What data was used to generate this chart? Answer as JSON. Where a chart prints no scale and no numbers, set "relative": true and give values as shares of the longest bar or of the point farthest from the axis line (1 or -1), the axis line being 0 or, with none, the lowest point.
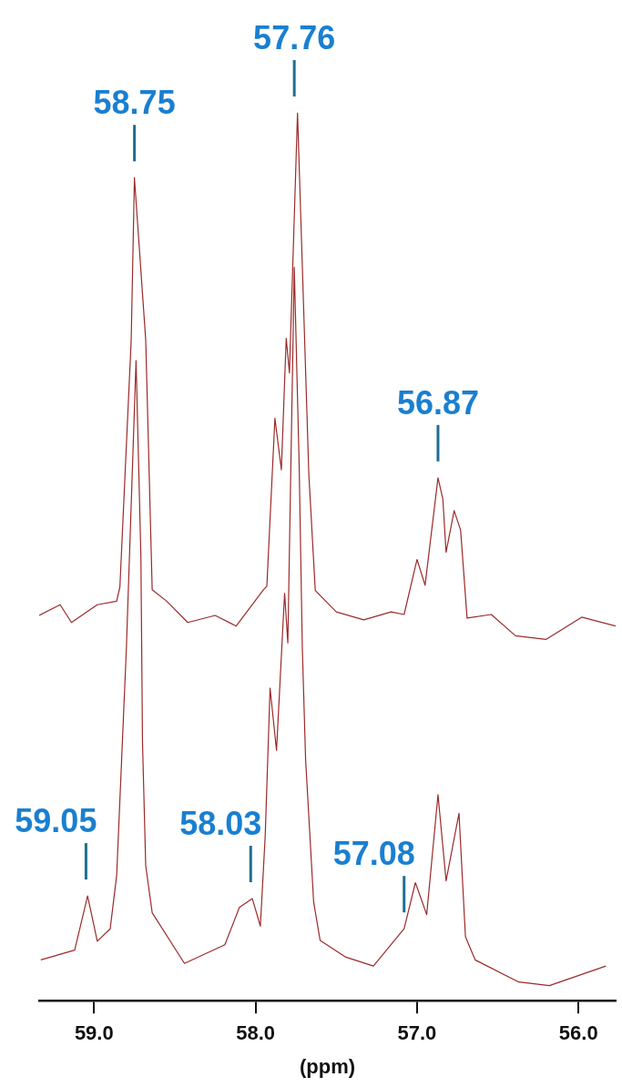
{
  "chart_data": {
    "type": "line",
    "relative": true,
    "xlabel": "(ppm)",
    "xlim": [
      59.34,
      55.77
    ],
    "xticks": [
      {
        "value": 59,
        "label": "59.0"
      },
      {
        "value": 58,
        "label": "58.0"
      },
      {
        "value": 57,
        "label": "57.0"
      },
      {
        "value": 56,
        "label": "56.0"
      }
    ],
    "series": [
      {
        "color": "#9b2a2a",
        "x": [
          59.34,
          59.21,
          59.14,
          58.98,
          58.86,
          58.84,
          58.77,
          58.75,
          58.68,
          58.64,
          58.55,
          58.42,
          58.25,
          58.12,
          57.95,
          57.93,
          57.88,
          57.84,
          57.81,
          57.79,
          57.74,
          57.69,
          57.67,
          57.63,
          57.5,
          57.33,
          57.16,
          57.08,
          57.0,
          56.95,
          56.87,
          56.84,
          56.82,
          56.77,
          56.73,
          56.69,
          56.54,
          56.39,
          56.2,
          55.98,
          55.77
        ],
        "values": [
          0.434,
          0.446,
          0.426,
          0.446,
          0.45,
          0.466,
          0.744,
          0.927,
          0.744,
          0.463,
          0.45,
          0.426,
          0.434,
          0.422,
          0.463,
          0.467,
          0.656,
          0.598,
          0.746,
          0.707,
          1.0,
          0.71,
          0.593,
          0.462,
          0.438,
          0.429,
          0.438,
          0.435,
          0.497,
          0.468,
          0.589,
          0.565,
          0.505,
          0.552,
          0.53,
          0.431,
          0.435,
          0.411,
          0.407,
          0.432,
          0.422
        ]
      },
      {
        "color": "#9b2a2a",
        "x": [
          59.33,
          59.12,
          59.04,
          58.98,
          58.9,
          58.86,
          58.8,
          58.74,
          58.71,
          58.7,
          58.68,
          58.64,
          58.44,
          58.19,
          58.1,
          58.02,
          57.97,
          57.94,
          57.91,
          57.87,
          57.82,
          57.8,
          57.76,
          57.73,
          57.71,
          57.69,
          57.64,
          57.6,
          57.44,
          57.27,
          57.08,
          57.01,
          56.94,
          56.87,
          56.82,
          56.74,
          56.7,
          56.64,
          56.37,
          56.18,
          55.83
        ],
        "values": [
          0.046,
          0.057,
          0.118,
          0.067,
          0.081,
          0.141,
          0.396,
          0.721,
          0.501,
          0.291,
          0.152,
          0.099,
          0.042,
          0.063,
          0.105,
          0.115,
          0.084,
          0.186,
          0.352,
          0.282,
          0.459,
          0.403,
          0.826,
          0.605,
          0.396,
          0.272,
          0.111,
          0.068,
          0.049,
          0.039,
          0.081,
          0.133,
          0.097,
          0.232,
          0.135,
          0.211,
          0.072,
          0.046,
          0.021,
          0.017,
          0.039
        ]
      }
    ],
    "annotations": [
      {
        "text": "58.75",
        "x": 58.75,
        "y": 0.927
      },
      {
        "text": "57.76",
        "x": 57.76,
        "y": 1.0
      },
      {
        "text": "56.87",
        "x": 56.87,
        "y": 0.589
      },
      {
        "text": "59.05",
        "x": 59.05,
        "y": 0.118
      },
      {
        "text": "58.03",
        "x": 58.03,
        "y": 0.115
      },
      {
        "text": "57.08",
        "x": 57.08,
        "y": 0.081
      }
    ]
  }
}
